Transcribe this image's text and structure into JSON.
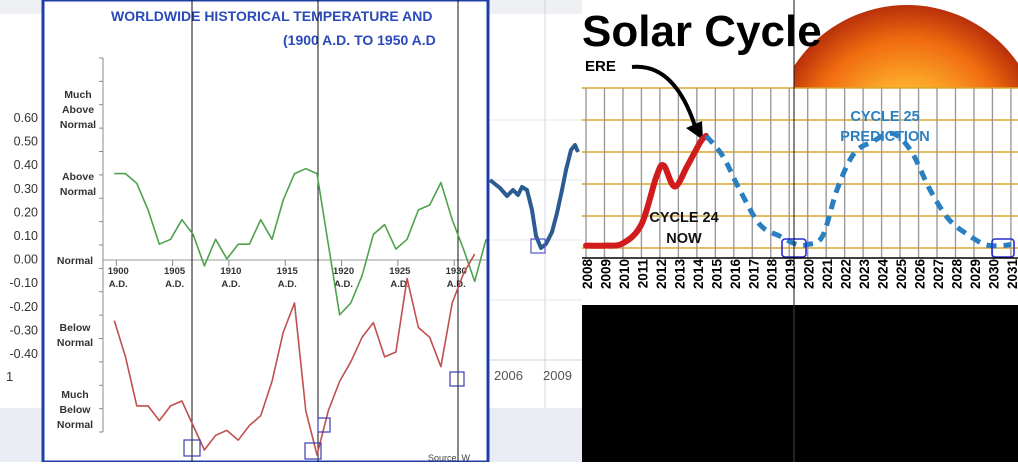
{
  "left_collage": {
    "title_line1": "WORLDWIDE HISTORICAL TEMPERATURE AND",
    "title_line2": "(1900 A.D. TO 1950 A.D",
    "source_fragment": "Source: W",
    "back_axis_ticks": [
      "0.60",
      "0.50",
      "0.40",
      "0.30",
      "0.20",
      "0.10",
      "0.00",
      "-0.10",
      "-0.20",
      "-0.30",
      "-0.40"
    ],
    "back_axis_fragment": "1",
    "back_year_labels": [
      "2006",
      "2009"
    ],
    "ylabels": {
      "much_above": [
        "Much",
        "Above",
        "Normal"
      ],
      "above": [
        "Above",
        "Normal"
      ],
      "normal": [
        "Normal"
      ],
      "below": [
        "Below",
        "Normal"
      ],
      "much_below": [
        "Much",
        "Below",
        "Normal"
      ]
    },
    "xlabels": [
      {
        "year": "1900",
        "era": "A.D."
      },
      {
        "year": "1905",
        "era": "A.D."
      },
      {
        "year": "1910",
        "era": "A.D."
      },
      {
        "year": "1915",
        "era": "A.D."
      },
      {
        "year": "1920",
        "era": "A.D."
      },
      {
        "year": "1925",
        "era": "A.D."
      },
      {
        "year": "1930",
        "era": "A.D."
      }
    ]
  },
  "right_collage": {
    "title": "Solar Cycle",
    "here_label": "ERE",
    "cycle24_label": [
      "CYCLE 24",
      "NOW"
    ],
    "cycle25_label": [
      "CYCLE 25",
      "PREDICTION"
    ],
    "years": [
      "2008",
      "2009",
      "2010",
      "2011",
      "2012",
      "2013",
      "2014",
      "2015",
      "2016",
      "2017",
      "2018",
      "2019",
      "2020",
      "2021",
      "2022",
      "2023",
      "2024",
      "2025",
      "2026",
      "2027",
      "2028",
      "2029",
      "2030",
      "2031"
    ]
  },
  "colors": {
    "border_blue": "#1f3fa8",
    "title_blue": "#2a4ab8",
    "green_series": "#4ea24e",
    "red_series": "#c0504d",
    "solar_red": "#d01c1c",
    "solar_blue_dash": "#2a7fc0",
    "prediction_text": "#2a7fc0",
    "grid_gold": "#d9a52b",
    "grid_gray": "#9a9a9a"
  },
  "chart_data": [
    {
      "type": "line",
      "title": "WORLDWIDE HISTORICAL TEMPERATURE AND (1900 A.D. TO 1950 A.D",
      "xlabel": "",
      "ylabel": "",
      "categories": [
        "1900",
        "1905",
        "1910",
        "1915",
        "1920",
        "1925",
        "1930"
      ],
      "ylim": [
        -2,
        2
      ],
      "series": [
        {
          "values_xy": [
            [
              1900,
              0.82
            ],
            [
              1901,
              0.82
            ],
            [
              1902,
              0.72
            ],
            [
              1903,
              0.45
            ],
            [
              1904,
              0.1
            ],
            [
              1905,
              0.15
            ],
            [
              1906,
              0.35
            ],
            [
              1907,
              0.2
            ],
            [
              1908,
              -0.12
            ],
            [
              1909,
              0.15
            ],
            [
              1910,
              -0.05
            ],
            [
              1911,
              0.1
            ],
            [
              1912,
              0.1
            ],
            [
              1913,
              0.35
            ],
            [
              1914,
              0.15
            ],
            [
              1915,
              0.55
            ],
            [
              1916,
              0.82
            ],
            [
              1917,
              0.87
            ],
            [
              1918,
              0.82
            ],
            [
              1919,
              0.1
            ],
            [
              1920,
              -0.62
            ],
            [
              1921,
              -0.5
            ],
            [
              1922,
              -0.22
            ],
            [
              1923,
              0.2
            ],
            [
              1924,
              0.3
            ],
            [
              1925,
              0.05
            ],
            [
              1926,
              0.15
            ],
            [
              1927,
              0.45
            ],
            [
              1928,
              0.5
            ],
            [
              1929,
              0.73
            ],
            [
              1930,
              0.35
            ],
            [
              1931,
              0.05
            ],
            [
              1932,
              -0.28
            ],
            [
              1933,
              0.15
            ]
          ]
        },
        {
          "values_xy": [
            [
              1900,
              -0.68
            ],
            [
              1901,
              -1.05
            ],
            [
              1902,
              -1.55
            ],
            [
              1903,
              -1.55
            ],
            [
              1904,
              -1.7
            ],
            [
              1905,
              -1.55
            ],
            [
              1906,
              -1.5
            ],
            [
              1907,
              -1.75
            ],
            [
              1908,
              -2.0
            ],
            [
              1909,
              -1.85
            ],
            [
              1910,
              -1.8
            ],
            [
              1911,
              -1.9
            ],
            [
              1912,
              -1.75
            ],
            [
              1913,
              -1.65
            ],
            [
              1914,
              -1.3
            ],
            [
              1915,
              -0.8
            ],
            [
              1916,
              -0.5
            ],
            [
              1917,
              -1.6
            ],
            [
              1918,
              -2.05
            ],
            [
              1919,
              -1.6
            ],
            [
              1920,
              -1.3
            ],
            [
              1921,
              -1.1
            ],
            [
              1922,
              -0.85
            ],
            [
              1923,
              -0.7
            ],
            [
              1924,
              -1.05
            ],
            [
              1925,
              -1.0
            ],
            [
              1926,
              -0.25
            ],
            [
              1927,
              -0.75
            ],
            [
              1928,
              -0.85
            ],
            [
              1929,
              -1.15
            ],
            [
              1930,
              -0.5
            ],
            [
              1931,
              -0.2
            ],
            [
              1932,
              0.0
            ]
          ]
        }
      ]
    },
    {
      "type": "line",
      "title": "Solar Cycle",
      "xlabel": "",
      "ylabel": "",
      "categories": [
        "2008",
        "2009",
        "2010",
        "2011",
        "2012",
        "2013",
        "2014",
        "2015",
        "2016",
        "2017",
        "2018",
        "2019",
        "2020",
        "2021",
        "2022",
        "2023",
        "2024",
        "2025",
        "2026",
        "2027",
        "2028",
        "2029",
        "2030",
        "2031"
      ],
      "series": [
        {
          "name": "CYCLE 24",
          "values_xy": [
            [
              2008.0,
              2
            ],
            [
              2009.0,
              2
            ],
            [
              2010.0,
              4
            ],
            [
              2011.0,
              20
            ],
            [
              2011.8,
              60
            ],
            [
              2012.2,
              70
            ],
            [
              2012.8,
              52
            ],
            [
              2013.5,
              70
            ],
            [
              2014.2,
              90
            ],
            [
              2014.5,
              95
            ]
          ]
        },
        {
          "name": "CYCLE 25",
          "values_xy": [
            [
              2014.5,
              95
            ],
            [
              2015.4,
              78
            ],
            [
              2016.3,
              50
            ],
            [
              2017.4,
              20
            ],
            [
              2018.5,
              10
            ],
            [
              2019.4,
              3
            ],
            [
              2020.0,
              3
            ],
            [
              2020.8,
              10
            ],
            [
              2021.6,
              50
            ],
            [
              2022.5,
              80
            ],
            [
              2023.5,
              90
            ],
            [
              2024.6,
              97
            ],
            [
              2025.6,
              82
            ],
            [
              2026.6,
              50
            ],
            [
              2027.6,
              25
            ],
            [
              2028.6,
              12
            ],
            [
              2029.6,
              3
            ],
            [
              2030.5,
              2
            ],
            [
              2031.0,
              3
            ]
          ]
        }
      ]
    }
  ]
}
